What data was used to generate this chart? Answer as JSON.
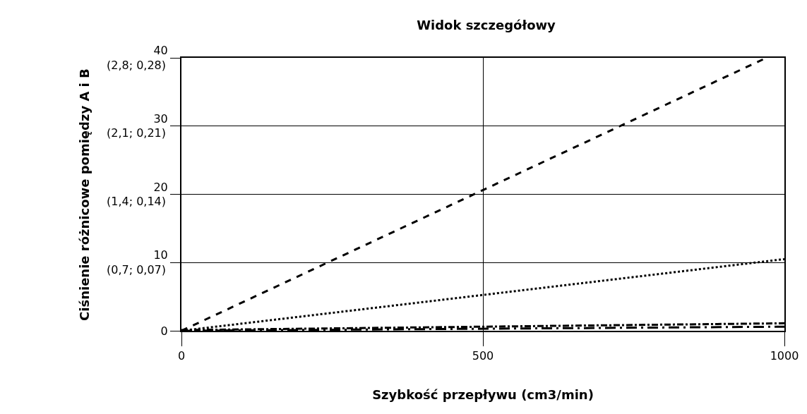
{
  "chart_data": {
    "type": "line",
    "title": "Widok szczegółowy",
    "xlabel": "Szybkość przepływu (cm3/min)",
    "ylabel": "Ciśnienie różnicowe pomiędzy A i B",
    "xlim": [
      0,
      1000
    ],
    "xticks": [
      0,
      500,
      1000
    ],
    "ylim": [
      0,
      40
    ],
    "yticks": [
      0,
      10,
      20,
      30,
      40
    ],
    "annotations": [
      "(0,7; 0,07)",
      "(1,4; 0,14)",
      "(2,1; 0,21)",
      "(2,8; 0,28)"
    ],
    "grid": true,
    "legend": false,
    "marker": "none",
    "series": [
      {
        "color": "#000000",
        "line_style": "dashed",
        "x": [
          0,
          970
        ],
        "values": [
          0,
          40
        ]
      },
      {
        "color": "#000000",
        "line_style": "dotted",
        "x": [
          0,
          1000
        ],
        "values": [
          0,
          10.5
        ]
      },
      {
        "color": "#000000",
        "line_style": "dashdot",
        "x": [
          0,
          1000
        ],
        "values": [
          0.1,
          1.1
        ]
      },
      {
        "color": "#000000",
        "line_style": "longdashdot",
        "x": [
          0,
          1000
        ],
        "values": [
          0,
          0.6
        ]
      }
    ]
  }
}
